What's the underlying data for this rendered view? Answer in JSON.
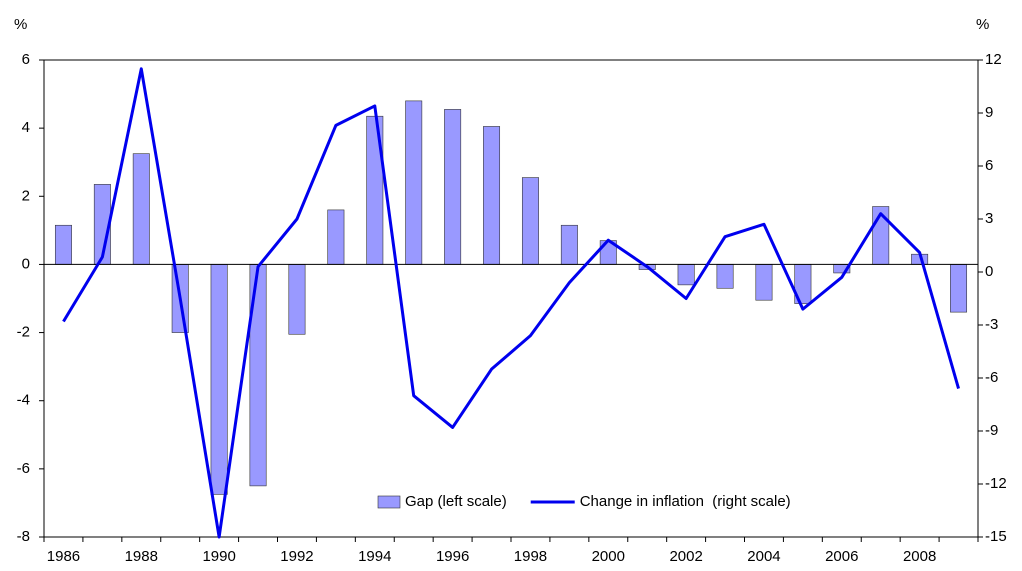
{
  "chart_data": {
    "type": "bar_line",
    "categories": [
      "1986",
      null,
      "1988",
      null,
      "1990",
      null,
      "1992",
      null,
      "1994",
      null,
      "1996",
      null,
      "1998",
      null,
      "2000",
      null,
      "2002",
      null,
      "2004",
      null,
      "2006",
      null,
      "2008",
      null
    ],
    "y_unit": "%",
    "y2_unit": "%",
    "series": [
      {
        "name": "Gap (left scale)",
        "type": "bar",
        "color": "#9999ff",
        "values": [
          1.15,
          2.35,
          3.25,
          -2.0,
          -6.75,
          -6.5,
          -2.05,
          1.6,
          4.35,
          4.8,
          4.55,
          4.05,
          2.55,
          1.15,
          0.7,
          -0.15,
          -0.6,
          -0.7,
          -1.05,
          -1.15,
          -0.25,
          1.7,
          0.3,
          -1.4
        ]
      },
      {
        "name": "Change in inflation  (right scale)",
        "type": "line",
        "axis": "y2",
        "color": "#0000ee",
        "values": [
          -2.8,
          0.85,
          11.5,
          -1.5,
          -15,
          0.3,
          3.0,
          8.3,
          9.4,
          -7.0,
          -8.8,
          -5.5,
          -3.6,
          -0.6,
          1.8,
          0.3,
          -1.5,
          2.0,
          2.7,
          -2.1,
          -0.3,
          3.3,
          1.1,
          -6.6
        ]
      }
    ],
    "ylim": [
      -8,
      6
    ],
    "yticks": [
      -8,
      -6,
      -4,
      -2,
      0,
      2,
      4,
      6
    ],
    "y2lim": [
      -15,
      12
    ],
    "y2ticks": [
      -15,
      -12,
      -9,
      -6,
      -3,
      0,
      3,
      6,
      9,
      12
    ],
    "legend": "bottom-center"
  }
}
